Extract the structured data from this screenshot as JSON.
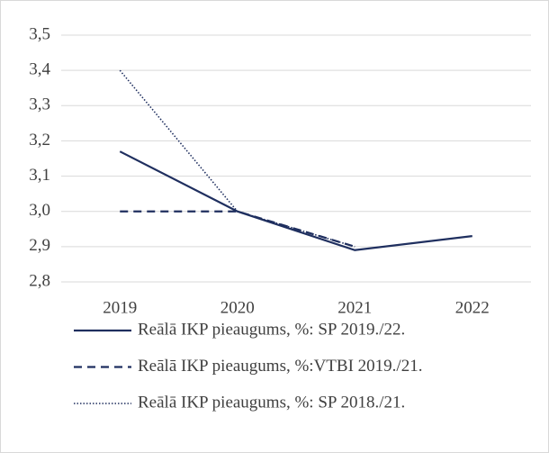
{
  "chart_data": {
    "type": "line",
    "categories": [
      "2019",
      "2020",
      "2021",
      "2022"
    ],
    "series": [
      {
        "name": "Reālā IKP pieaugums, %: SP 2019./22.",
        "color": "#1f2f5f",
        "dash": "solid",
        "values": [
          3.17,
          3.0,
          2.89,
          2.93
        ]
      },
      {
        "name": "Reālā IKP pieaugums, %:VTBI 2019./21.",
        "color": "#1f2f5f",
        "dash": "dashed",
        "values": [
          3.0,
          3.0,
          2.9,
          null
        ]
      },
      {
        "name": "Reālā IKP pieaugums, %: SP 2018./21.",
        "color": "#1f2f5f",
        "dash": "dotted",
        "values": [
          3.4,
          3.0,
          2.9,
          null
        ]
      }
    ],
    "ylim": [
      2.8,
      3.5
    ],
    "yticks": [
      {
        "value": 2.8,
        "label": "2,8"
      },
      {
        "value": 2.9,
        "label": "2,9"
      },
      {
        "value": 3.0,
        "label": "3,0"
      },
      {
        "value": 3.1,
        "label": "3,1"
      },
      {
        "value": 3.2,
        "label": "3,2"
      },
      {
        "value": 3.3,
        "label": "3,3"
      },
      {
        "value": 3.4,
        "label": "3,4"
      },
      {
        "value": 3.5,
        "label": "3,5"
      }
    ],
    "grid": true,
    "legend": "bottom"
  }
}
